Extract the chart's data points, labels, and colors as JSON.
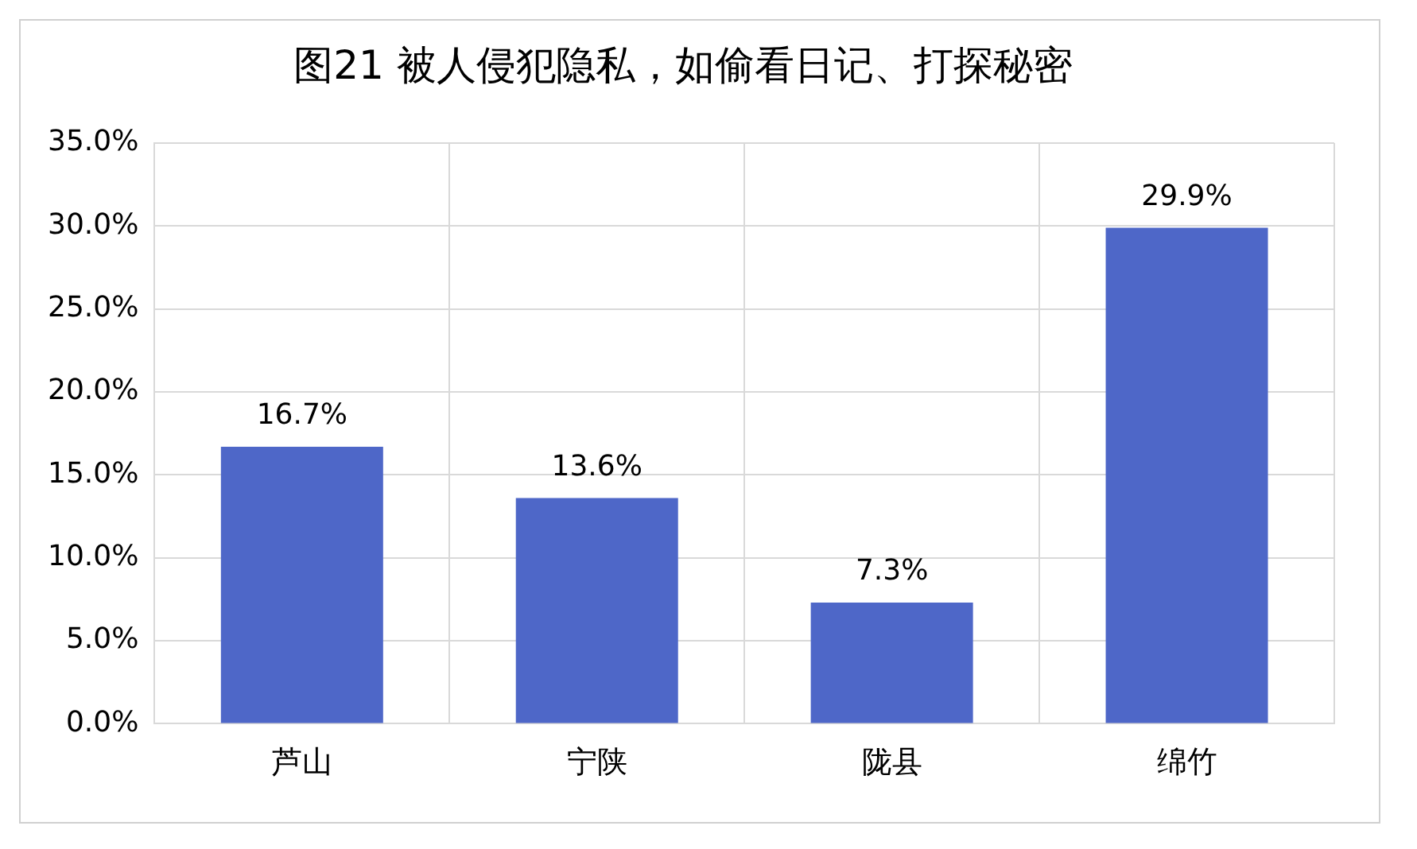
{
  "chart_data": {
    "type": "bar",
    "title": "图21 被人侵犯隐私，如偷看日记、打探秘密",
    "categories": [
      "芦山",
      "宁陕",
      "陇县",
      "绵竹"
    ],
    "values": [
      16.7,
      13.6,
      7.3,
      29.9
    ],
    "color": "#4e67c8",
    "value_labels": [
      "16.7%",
      "13.6%",
      "7.3%",
      "29.9%"
    ],
    "ylim": [
      0,
      35
    ],
    "yticks": [
      {
        "value": 0,
        "label": "0.0%"
      },
      {
        "value": 5,
        "label": "5.0%"
      },
      {
        "value": 10,
        "label": "10.0%"
      },
      {
        "value": 15,
        "label": "15.0%"
      },
      {
        "value": 20,
        "label": "20.0%"
      },
      {
        "value": 25,
        "label": "25.0%"
      },
      {
        "value": 30,
        "label": "30.0%"
      },
      {
        "value": 35,
        "label": "35.0%"
      }
    ],
    "grid": true,
    "legend": false
  }
}
